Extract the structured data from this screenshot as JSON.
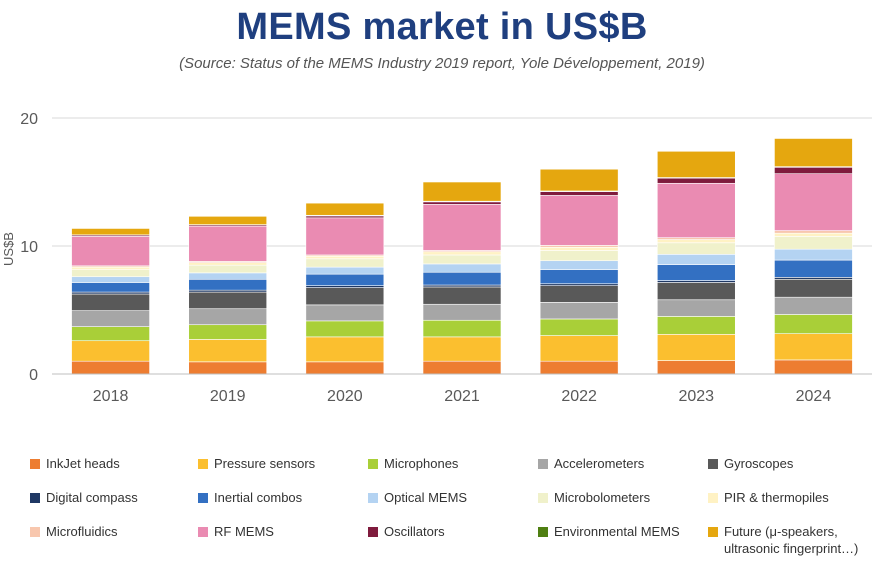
{
  "title": "MEMS market in US$B",
  "subtitle": "(Source: Status of the MEMS Industry 2019 report, Yole Développement, 2019)",
  "chart_data": {
    "type": "stacked-bar",
    "title": "MEMS market in US$B",
    "xlabel": "",
    "ylabel": "US$B",
    "ylim": [
      0,
      20
    ],
    "yticks": [
      0,
      10,
      20
    ],
    "grid": true,
    "legend_position": "bottom",
    "categories": [
      "2018",
      "2019",
      "2020",
      "2021",
      "2022",
      "2023",
      "2024"
    ],
    "series": [
      {
        "name": "InkJet heads",
        "color": "#ed7d31",
        "values": [
          1.0,
          0.95,
          0.95,
          1.0,
          1.0,
          1.05,
          1.1
        ]
      },
      {
        "name": "Pressure sensors",
        "color": "#fbbf2f",
        "values": [
          1.6,
          1.75,
          1.95,
          1.9,
          2.0,
          2.05,
          2.05
        ]
      },
      {
        "name": "Microphones",
        "color": "#a9cf38",
        "values": [
          1.1,
          1.15,
          1.25,
          1.3,
          1.3,
          1.4,
          1.5
        ]
      },
      {
        "name": "Accelerometers",
        "color": "#a6a6a6",
        "values": [
          1.25,
          1.25,
          1.25,
          1.25,
          1.3,
          1.3,
          1.35
        ]
      },
      {
        "name": "Gyroscopes",
        "color": "#595959",
        "values": [
          1.3,
          1.3,
          1.35,
          1.35,
          1.3,
          1.35,
          1.4
        ]
      },
      {
        "name": "Digital compass",
        "color": "#1f3864",
        "values": [
          0.15,
          0.15,
          0.15,
          0.15,
          0.15,
          0.15,
          0.15
        ]
      },
      {
        "name": "Inertial combos",
        "color": "#3370c2",
        "values": [
          0.75,
          0.85,
          0.9,
          1.0,
          1.1,
          1.25,
          1.35
        ]
      },
      {
        "name": "Optical MEMS",
        "color": "#b4d3f2",
        "values": [
          0.45,
          0.5,
          0.55,
          0.65,
          0.7,
          0.8,
          0.85
        ]
      },
      {
        "name": "Microbolometers",
        "color": "#f0f1cb",
        "values": [
          0.55,
          0.6,
          0.65,
          0.7,
          0.8,
          0.9,
          1.0
        ]
      },
      {
        "name": "PIR & thermopiles",
        "color": "#fff2c4",
        "values": [
          0.2,
          0.2,
          0.2,
          0.25,
          0.25,
          0.25,
          0.25
        ]
      },
      {
        "name": "Microfluidics",
        "color": "#f8c7ae",
        "values": [
          0.1,
          0.1,
          0.1,
          0.1,
          0.15,
          0.15,
          0.2
        ]
      },
      {
        "name": "RF MEMS",
        "color": "#ea8bb2",
        "values": [
          2.3,
          2.75,
          2.9,
          3.6,
          3.9,
          4.25,
          4.45
        ]
      },
      {
        "name": "Oscillators",
        "color": "#7f1b3d",
        "values": [
          0.1,
          0.1,
          0.15,
          0.2,
          0.3,
          0.4,
          0.5
        ]
      },
      {
        "name": "Environmental MEMS",
        "color": "#4f7f12",
        "values": [
          0.02,
          0.02,
          0.05,
          0.05,
          0.05,
          0.05,
          0.05
        ]
      },
      {
        "name": "Future (μ-speakers,\nultrasonic fingerprint…)",
        "color": "#e5a70f",
        "values": [
          0.5,
          0.65,
          0.95,
          1.5,
          1.7,
          2.05,
          2.2
        ]
      }
    ]
  }
}
